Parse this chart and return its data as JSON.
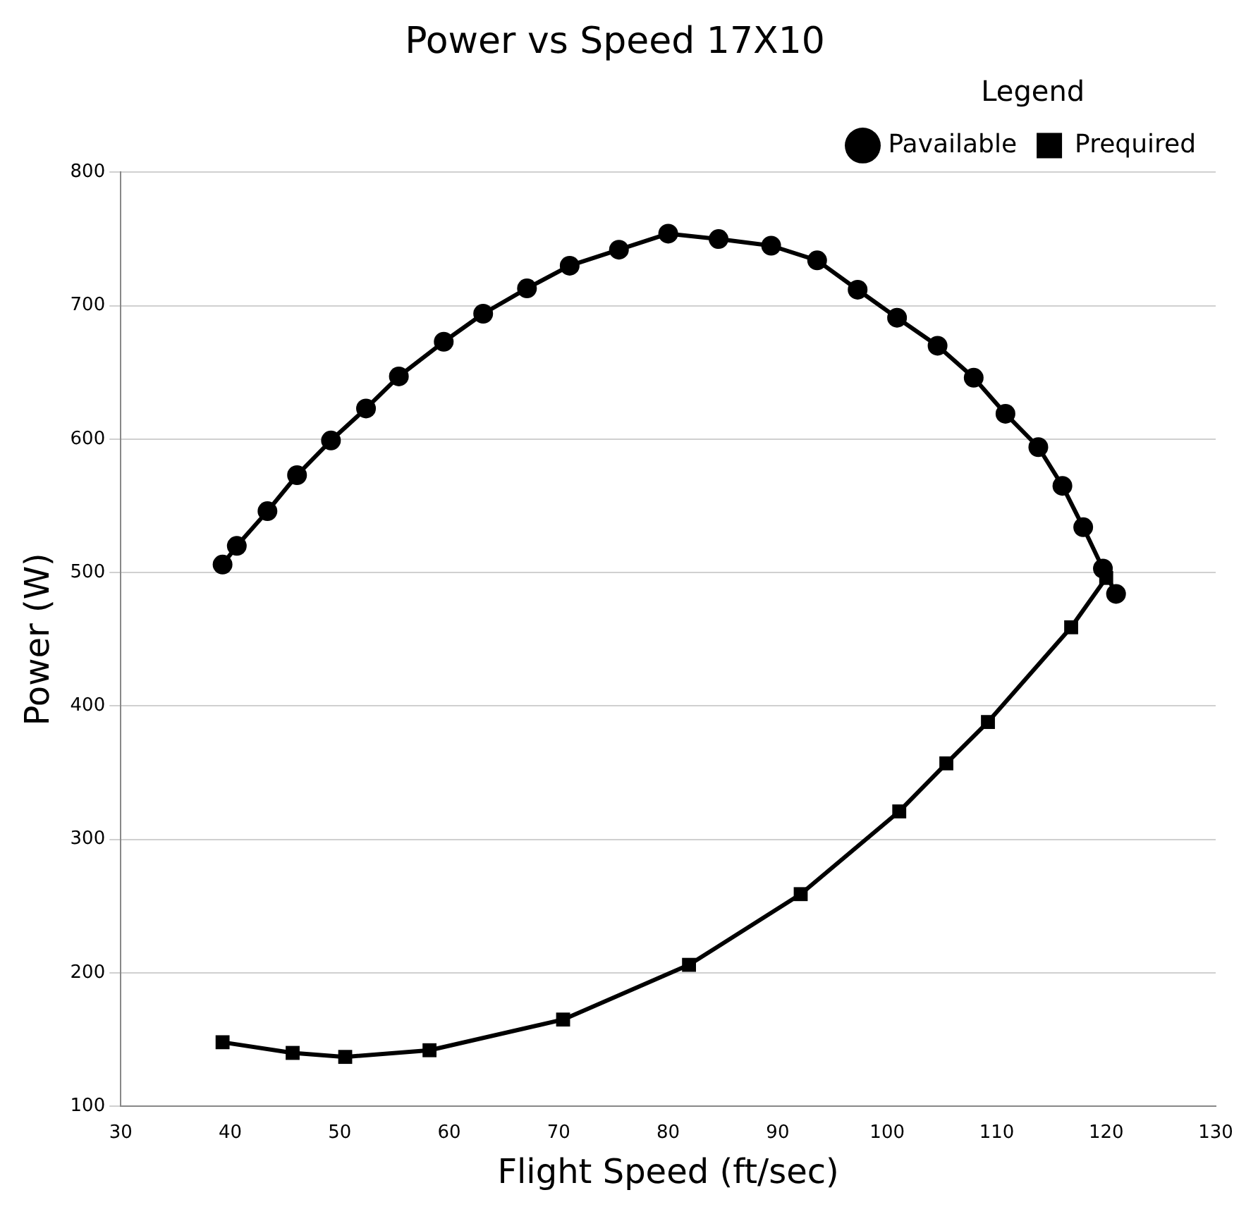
{
  "chart_data": {
    "type": "line",
    "title": "Power vs Speed 17X10",
    "xlabel": "Flight Speed (ft/sec)",
    "ylabel": "Power (W)",
    "legend_title": "Legend",
    "xlim": [
      30,
      130
    ],
    "xticks": [
      30,
      40,
      50,
      60,
      70,
      80,
      90,
      100,
      110,
      120,
      130
    ],
    "ylim": [
      100,
      800
    ],
    "yticks": [
      100,
      200,
      300,
      400,
      500,
      600,
      700,
      800
    ],
    "grid": "y",
    "legend": "top right",
    "line_style": "solid",
    "series": [
      {
        "name": "Pavailable",
        "color": "#000000",
        "marker": "circle",
        "x": [
          39.3,
          40.6,
          43.4,
          46.1,
          49.2,
          52.4,
          55.4,
          59.5,
          63.1,
          67.1,
          71.0,
          75.5,
          80.0,
          84.6,
          89.4,
          93.6,
          97.3,
          100.9,
          104.6,
          107.9,
          110.8,
          113.8,
          116.0,
          117.9,
          119.7,
          120.9
        ],
        "values": [
          506,
          520,
          546,
          573,
          599,
          623,
          647,
          673,
          694,
          713,
          730,
          742,
          754,
          750,
          745,
          734,
          712,
          691,
          670,
          646,
          619,
          594,
          565,
          534,
          503,
          484
        ]
      },
      {
        "name": "Prequired",
        "color": "#000000",
        "marker": "square",
        "x": [
          39.3,
          45.7,
          50.5,
          58.2,
          70.4,
          81.9,
          92.1,
          101.1,
          105.4,
          109.2,
          116.8,
          120.0
        ],
        "values": [
          148,
          140,
          137,
          142,
          165,
          206,
          259,
          321,
          357,
          388,
          459,
          496
        ]
      }
    ]
  }
}
